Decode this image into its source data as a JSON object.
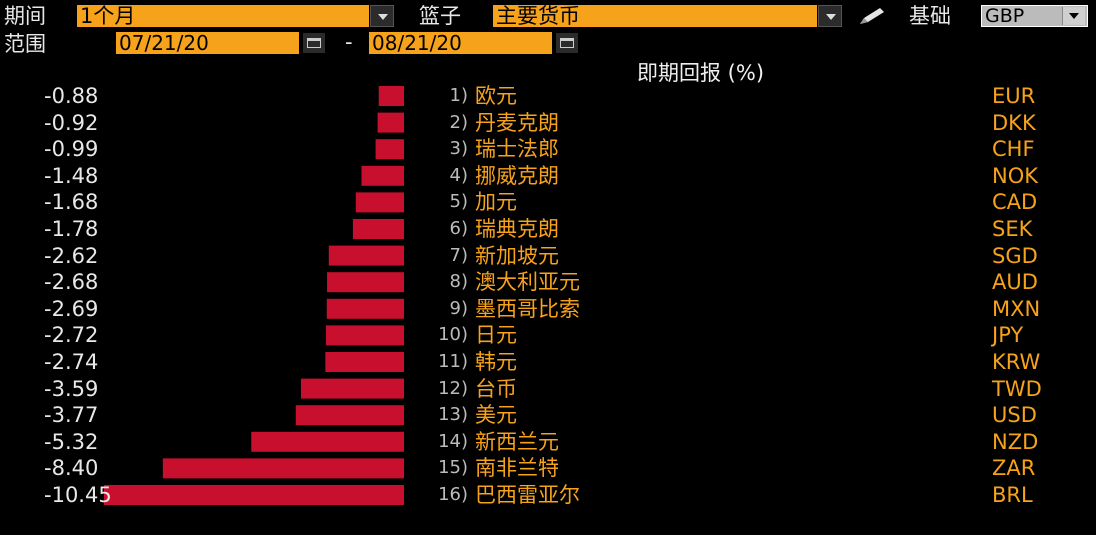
{
  "controls": {
    "period_label": "期间",
    "period_value": "1个月",
    "basket_label": "篮子",
    "basket_value": "主要货币",
    "base_label": "基础",
    "base_value": "GBP",
    "range_label": "范围",
    "start_date": "07/21/20",
    "date_separator": "-",
    "end_date": "08/21/20"
  },
  "colors": {
    "accent": "#f7a21b",
    "bar": "#c8102e",
    "background": "#000000"
  },
  "chart_data": {
    "type": "bar",
    "orientation": "horizontal",
    "title": "即期回报 (%)",
    "categories": [
      "欧元",
      "丹麦克朗",
      "瑞士法郎",
      "挪威克朗",
      "加元",
      "瑞典克朗",
      "新加坡元",
      "澳大利亚元",
      "墨西哥比索",
      "日元",
      "韩元",
      "台币",
      "美元",
      "新西兰元",
      "南非兰特",
      "巴西雷亚尔"
    ],
    "ranks": [
      "1)",
      "2)",
      "3)",
      "4)",
      "5)",
      "6)",
      "7)",
      "8)",
      "9)",
      "10)",
      "11)",
      "12)",
      "13)",
      "14)",
      "15)",
      "16)"
    ],
    "codes": [
      "EUR",
      "DKK",
      "CHF",
      "NOK",
      "CAD",
      "SEK",
      "SGD",
      "AUD",
      "MXN",
      "JPY",
      "KRW",
      "TWD",
      "USD",
      "NZD",
      "ZAR",
      "BRL"
    ],
    "labels": [
      "-0.88",
      "-0.92",
      "-0.99",
      "-1.48",
      "-1.68",
      "-1.78",
      "-2.62",
      "-2.68",
      "-2.69",
      "-2.72",
      "-2.74",
      "-3.59",
      "-3.77",
      "-5.32",
      "-8.40",
      "-10.45"
    ],
    "values": [
      -0.88,
      -0.92,
      -0.99,
      -1.48,
      -1.68,
      -1.78,
      -2.62,
      -2.68,
      -2.69,
      -2.72,
      -2.74,
      -3.59,
      -3.77,
      -5.32,
      -8.4,
      -10.45
    ]
  }
}
